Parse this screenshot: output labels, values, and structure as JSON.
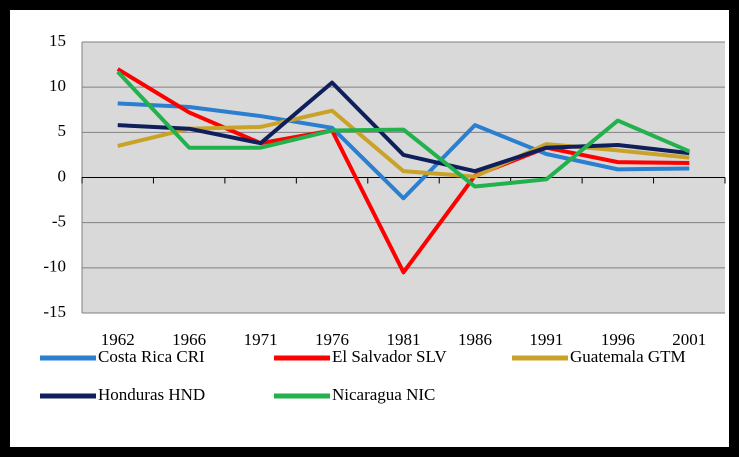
{
  "chart_data": {
    "type": "line",
    "categories": [
      "1962",
      "1966",
      "1971",
      "1976",
      "1981",
      "1986",
      "1991",
      "1996",
      "2001"
    ],
    "series": [
      {
        "name": "Costa Rica CRI",
        "color": "#2a7fd0",
        "values": [
          8.2,
          7.8,
          6.8,
          5.5,
          -2.3,
          5.8,
          2.6,
          0.9,
          1.0
        ]
      },
      {
        "name": "El Salvador SLV",
        "color": "#ff0000",
        "values": [
          12.0,
          7.2,
          3.8,
          5.2,
          -10.5,
          0.2,
          3.3,
          1.7,
          1.6
        ]
      },
      {
        "name": "Guatemala GTM",
        "color": "#c9a227",
        "values": [
          3.5,
          5.4,
          5.6,
          7.4,
          0.7,
          0.1,
          3.7,
          3.0,
          2.2
        ]
      },
      {
        "name": "Honduras HND",
        "color": "#0f1f5c",
        "values": [
          5.8,
          5.4,
          3.8,
          10.5,
          2.5,
          0.7,
          3.3,
          3.6,
          2.7
        ]
      },
      {
        "name": "Nicaragua NIC",
        "color": "#22b14c",
        "values": [
          11.7,
          3.3,
          3.3,
          5.2,
          5.3,
          -1.0,
          -0.2,
          6.3,
          2.9
        ]
      }
    ],
    "ylim": [
      -15,
      15
    ],
    "yticks": [
      -15,
      -10,
      -5,
      0,
      5,
      10,
      15
    ],
    "grid": true,
    "legend": "bottom"
  }
}
